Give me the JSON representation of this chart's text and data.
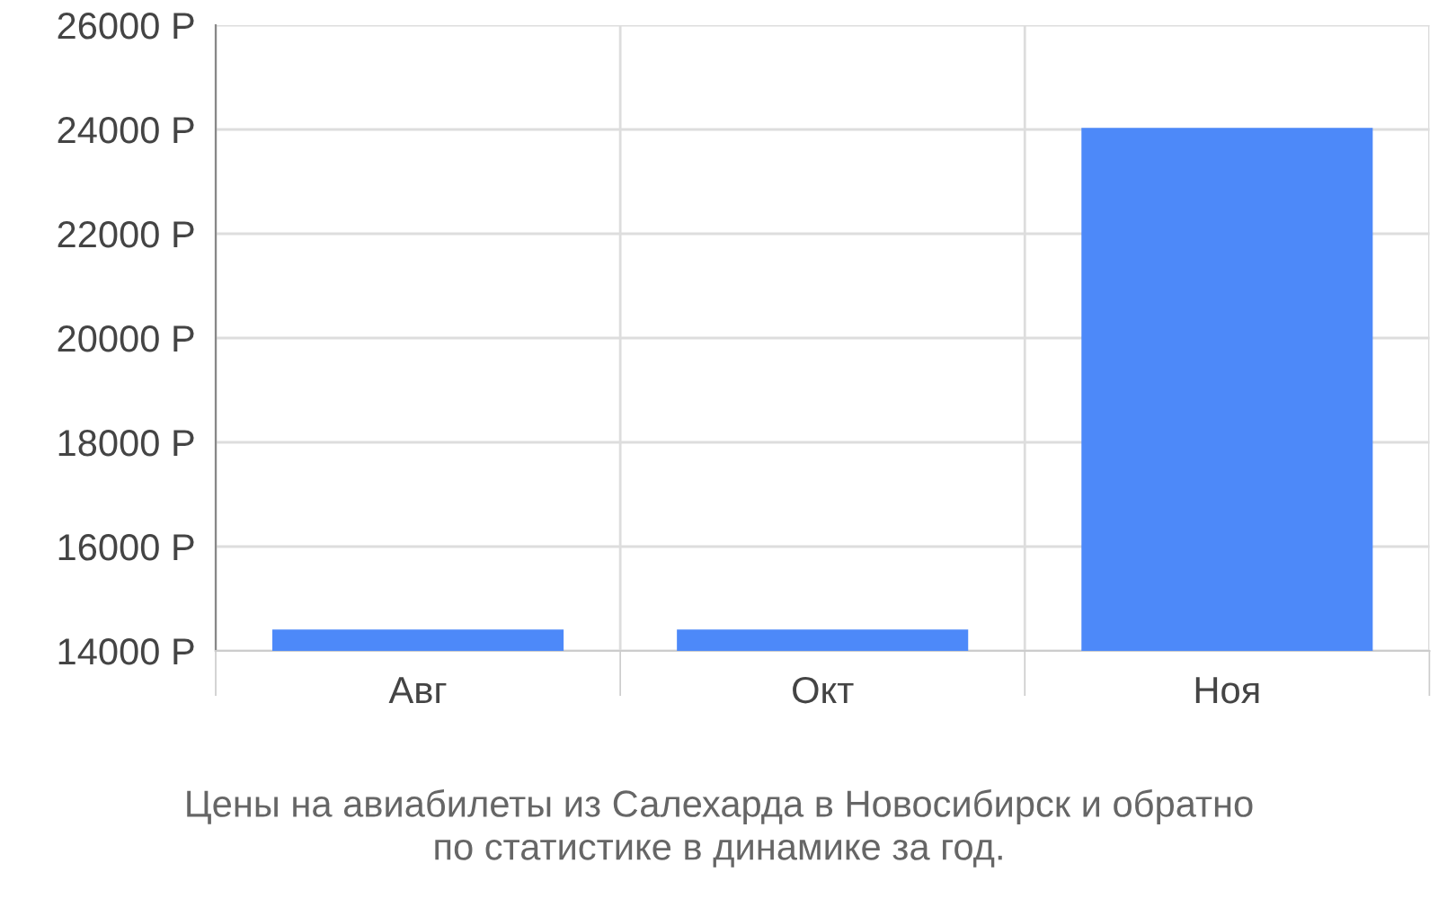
{
  "chart_data": {
    "type": "bar",
    "title": "Цены на авиабилеты из Салехарда в Новосибирск и обратно\nпо статистике в динамике за год.",
    "categories": [
      "Авг",
      "Окт",
      "Ноя"
    ],
    "values": [
      14410,
      14410,
      24030
    ],
    "color": "#4d89f9",
    "ylim": [
      14000,
      26000
    ],
    "yticks": [
      {
        "value": 14000,
        "label": "14000 Р"
      },
      {
        "value": 16000,
        "label": "16000 Р"
      },
      {
        "value": 18000,
        "label": "18000 Р"
      },
      {
        "value": 20000,
        "label": "20000 Р"
      },
      {
        "value": 22000,
        "label": "22000 Р"
      },
      {
        "value": 24000,
        "label": "24000 Р"
      },
      {
        "value": 26000,
        "label": "26000 Р"
      }
    ],
    "grid": true
  }
}
